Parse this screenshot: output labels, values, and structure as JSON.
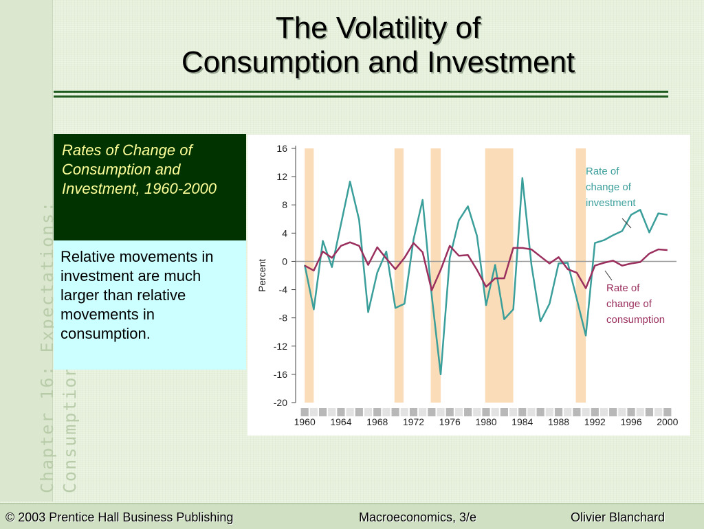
{
  "slide": {
    "title_line1": "The Volatility of",
    "title_line2": "Consumption and Investment",
    "sidebar_line1": "Chapter 16:  Expectations:",
    "sidebar_line2": "Consumption and Investment",
    "caption": "Rates of Change of Consumption and Investment, 1960-2000",
    "note": "Relative movements in investment are much larger than relative movements in consumption."
  },
  "footer": {
    "left": "© 2003 Prentice Hall Business Publishing",
    "middle": "Macroeconomics, 3/e",
    "right": "Olivier Blanchard"
  },
  "colors": {
    "investment": "#3a9e9a",
    "consumption": "#9a2f5e",
    "recession": "#fbdcb8",
    "caption_bg": "#003300",
    "caption_text": "#ffff99",
    "note_bg": "#ccffff"
  },
  "chart_data": {
    "type": "line",
    "ylabel": "Percent",
    "xlim": [
      1959,
      2001
    ],
    "ylim": [
      -20,
      16
    ],
    "yticks": [
      16,
      12,
      8,
      4,
      0,
      -4,
      -8,
      -12,
      -16,
      -20
    ],
    "xticks": [
      "1960",
      "1964",
      "1968",
      "1972",
      "1976",
      "1980",
      "1984",
      "1988",
      "1992",
      "1996",
      "2000"
    ],
    "grid": false,
    "recession_shading": [
      [
        1960,
        1961
      ],
      [
        1969.9,
        1970.9
      ],
      [
        1973.9,
        1975
      ],
      [
        1979.9,
        1983
      ],
      [
        1989.9,
        1991
      ]
    ],
    "series": [
      {
        "name": "Rate of change of investment",
        "label_lines": [
          "Rate of",
          "change of",
          "investment"
        ],
        "x": [
          1960,
          1961,
          1962,
          1963,
          1964,
          1965,
          1966,
          1967,
          1968,
          1969,
          1970,
          1971,
          1972,
          1973,
          1974,
          1975,
          1976,
          1977,
          1978,
          1979,
          1980,
          1981,
          1982,
          1983,
          1984,
          1985,
          1986,
          1987,
          1988,
          1989,
          1990,
          1991,
          1992,
          1993,
          1994,
          1995,
          1996,
          1997,
          1998,
          1999,
          2000
        ],
        "values": [
          -0.5,
          -6.8,
          2.9,
          -0.8,
          5.3,
          11.3,
          5.9,
          -7.2,
          -1.6,
          1.4,
          -6.6,
          -6.0,
          3.1,
          8.7,
          -4.8,
          -16.0,
          0.5,
          5.8,
          7.8,
          3.6,
          -6.2,
          -0.5,
          -8.2,
          -6.8,
          11.8,
          -0.5,
          -8.5,
          -6.0,
          -0.3,
          -0.2,
          -5.3,
          -10.5,
          2.6,
          3.0,
          3.7,
          4.3,
          6.6,
          7.3,
          4.1,
          6.8,
          6.6
        ]
      },
      {
        "name": "Rate of change of consumption",
        "label_lines": [
          "Rate of",
          "change of",
          "consumption"
        ],
        "x": [
          1960,
          1961,
          1962,
          1963,
          1964,
          1965,
          1966,
          1967,
          1968,
          1969,
          1970,
          1971,
          1972,
          1973,
          1974,
          1975,
          1976,
          1977,
          1978,
          1979,
          1980,
          1981,
          1982,
          1983,
          1984,
          1985,
          1986,
          1987,
          1988,
          1989,
          1990,
          1991,
          1992,
          1993,
          1994,
          1995,
          1996,
          1997,
          1998,
          1999,
          2000
        ],
        "values": [
          -0.6,
          -1.3,
          1.4,
          0.5,
          2.2,
          2.7,
          2.2,
          -0.5,
          2.0,
          0.4,
          -1.1,
          0.5,
          2.6,
          1.3,
          -4.1,
          -1.2,
          2.2,
          0.8,
          0.9,
          -1.2,
          -3.6,
          -2.4,
          -2.4,
          1.9,
          1.9,
          1.7,
          0.7,
          -0.3,
          0.6,
          -1.1,
          -1.6,
          -3.8,
          -0.6,
          -0.2,
          0.1,
          -0.6,
          -0.3,
          -0.1,
          1.1,
          1.7,
          1.6
        ]
      }
    ]
  }
}
